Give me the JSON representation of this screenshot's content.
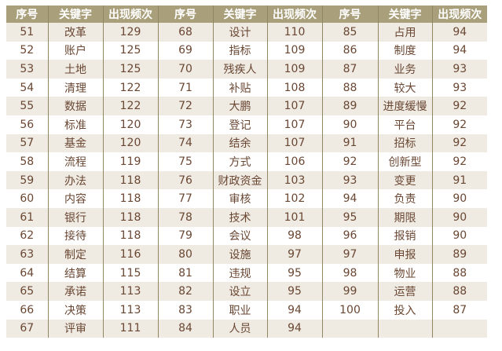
{
  "headers": [
    "序号",
    "关键字",
    "出现频次",
    "序号",
    "关键字",
    "出现频次",
    "序号",
    "关键字",
    "出现频次"
  ],
  "rows": [
    [
      "51",
      "改革",
      "129",
      "68",
      "设计",
      "110",
      "85",
      "占用",
      "94"
    ],
    [
      "52",
      "账户",
      "125",
      "69",
      "指标",
      "109",
      "86",
      "制度",
      "94"
    ],
    [
      "53",
      "土地",
      "125",
      "70",
      "残疾人",
      "109",
      "87",
      "业务",
      "93"
    ],
    [
      "54",
      "清理",
      "122",
      "71",
      "补贴",
      "108",
      "88",
      "较大",
      "93"
    ],
    [
      "55",
      "数据",
      "122",
      "72",
      "大鹏",
      "107",
      "89",
      "进度缓慢",
      "92"
    ],
    [
      "56",
      "标准",
      "120",
      "73",
      "登记",
      "107",
      "90",
      "平台",
      "92"
    ],
    [
      "57",
      "基金",
      "120",
      "74",
      "结余",
      "107",
      "91",
      "招标",
      "92"
    ],
    [
      "58",
      "流程",
      "119",
      "75",
      "方式",
      "106",
      "92",
      "创新型",
      "92"
    ],
    [
      "59",
      "办法",
      "118",
      "76",
      "财政资金",
      "103",
      "93",
      "变更",
      "91"
    ],
    [
      "60",
      "内容",
      "118",
      "77",
      "审核",
      "102",
      "94",
      "负责",
      "90"
    ],
    [
      "61",
      "银行",
      "118",
      "78",
      "技术",
      "101",
      "95",
      "期限",
      "90"
    ],
    [
      "62",
      "接待",
      "118",
      "79",
      "会议",
      "98",
      "96",
      "报销",
      "90"
    ],
    [
      "63",
      "制定",
      "116",
      "80",
      "设施",
      "97",
      "97",
      "申报",
      "89"
    ],
    [
      "64",
      "结算",
      "115",
      "81",
      "违规",
      "95",
      "98",
      "物业",
      "88"
    ],
    [
      "65",
      "承诺",
      "113",
      "82",
      "设立",
      "95",
      "99",
      "运营",
      "88"
    ],
    [
      "66",
      "决策",
      "113",
      "83",
      "职业",
      "94",
      "100",
      "投入",
      "87"
    ],
    [
      "67",
      "评审",
      "111",
      "84",
      "人员",
      "94",
      "",
      "",
      ""
    ]
  ],
  "colors": {
    "header_bg": "#a99f7b",
    "odd_row": "#efebe3",
    "even_row": "#ffffff",
    "text": "#6a4733"
  }
}
